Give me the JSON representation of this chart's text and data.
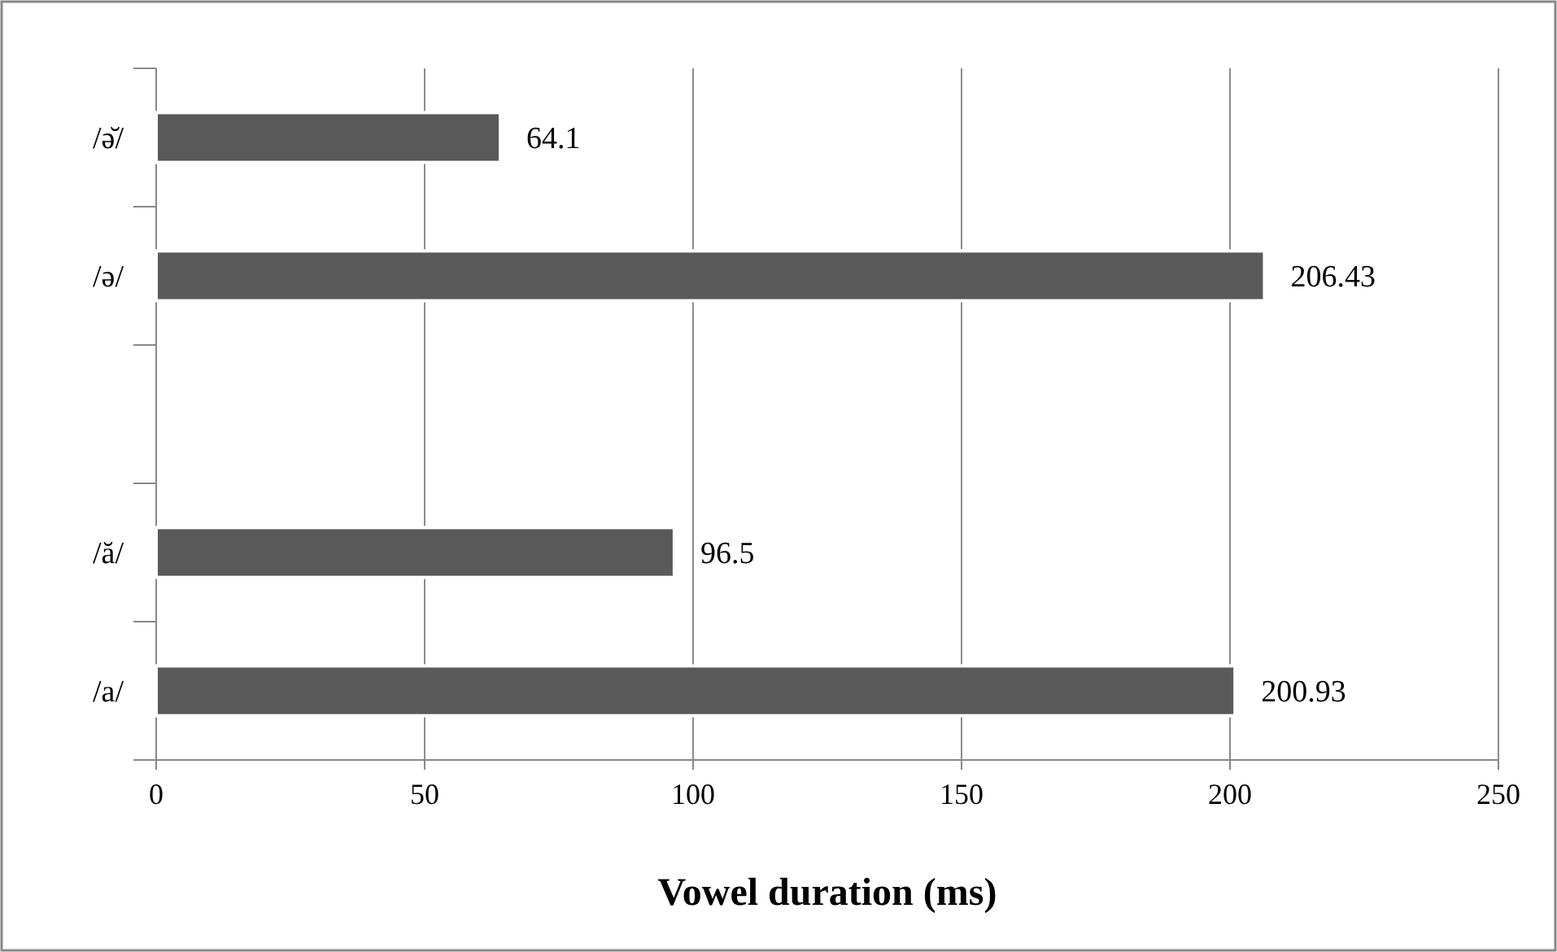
{
  "chart_data": {
    "type": "bar",
    "orientation": "horizontal",
    "xlabel": "Vowel duration (ms)",
    "categories": [
      "/ə̆/",
      "/ə/",
      null,
      "/ă/",
      "/a/"
    ],
    "values": [
      64.1,
      206.43,
      null,
      96.5,
      200.93
    ],
    "color": "#595959",
    "xlim": [
      0,
      250
    ],
    "xticks": [
      0,
      50,
      100,
      150,
      200,
      250
    ],
    "grid": "x",
    "data_labels": true
  }
}
